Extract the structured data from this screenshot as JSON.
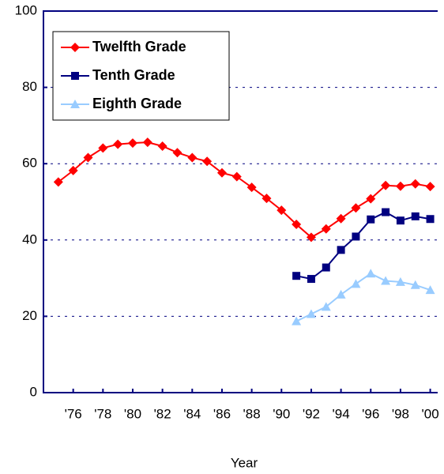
{
  "chart_data": {
    "type": "line",
    "x_label": "Year",
    "x": [
      1975,
      1976,
      1977,
      1978,
      1979,
      1980,
      1981,
      1982,
      1983,
      1984,
      1985,
      1986,
      1987,
      1988,
      1989,
      1990,
      1991,
      1992,
      1993,
      1994,
      1995,
      1996,
      1997,
      1998,
      1999,
      2000
    ],
    "series": [
      {
        "name": "Twelfth Grade",
        "color": "#ff0000",
        "marker": "diamond",
        "values": [
          55.2,
          58.2,
          61.6,
          64.1,
          65.1,
          65.4,
          65.6,
          64.6,
          62.9,
          61.6,
          60.6,
          57.6,
          56.6,
          53.8,
          50.9,
          47.8,
          44.1,
          40.7,
          42.9,
          45.6,
          48.4,
          50.8,
          54.3,
          54.1,
          54.7,
          54.0
        ]
      },
      {
        "name": "Tenth Grade",
        "color": "#000080",
        "marker": "square",
        "values": [
          null,
          null,
          null,
          null,
          null,
          null,
          null,
          null,
          null,
          null,
          null,
          null,
          null,
          null,
          null,
          null,
          30.6,
          29.8,
          32.8,
          37.4,
          40.9,
          45.4,
          47.3,
          45.1,
          46.2,
          45.5
        ]
      },
      {
        "name": "Eighth Grade",
        "color": "#99ccff",
        "marker": "triangle",
        "values": [
          null,
          null,
          null,
          null,
          null,
          null,
          null,
          null,
          null,
          null,
          null,
          null,
          null,
          null,
          null,
          null,
          18.7,
          20.6,
          22.5,
          25.7,
          28.5,
          31.2,
          29.3,
          29.0,
          28.2,
          26.9
        ]
      }
    ],
    "xlim": [
      1974,
      2000.5
    ],
    "xticks": [
      {
        "value": 1976,
        "label": "'76"
      },
      {
        "value": 1978,
        "label": "'78"
      },
      {
        "value": 1980,
        "label": "'80"
      },
      {
        "value": 1982,
        "label": "'82"
      },
      {
        "value": 1984,
        "label": "'84"
      },
      {
        "value": 1986,
        "label": "'86"
      },
      {
        "value": 1988,
        "label": "'88"
      },
      {
        "value": 1990,
        "label": "'90"
      },
      {
        "value": 1992,
        "label": "'92"
      },
      {
        "value": 1994,
        "label": "'94"
      },
      {
        "value": 1996,
        "label": "'96"
      },
      {
        "value": 1998,
        "label": "'98"
      },
      {
        "value": 2000,
        "label": "'00"
      }
    ],
    "ylim": [
      0,
      100
    ],
    "yticks": [
      0,
      20,
      40,
      60,
      80,
      100
    ],
    "grid": true,
    "legend": "upper-left"
  }
}
